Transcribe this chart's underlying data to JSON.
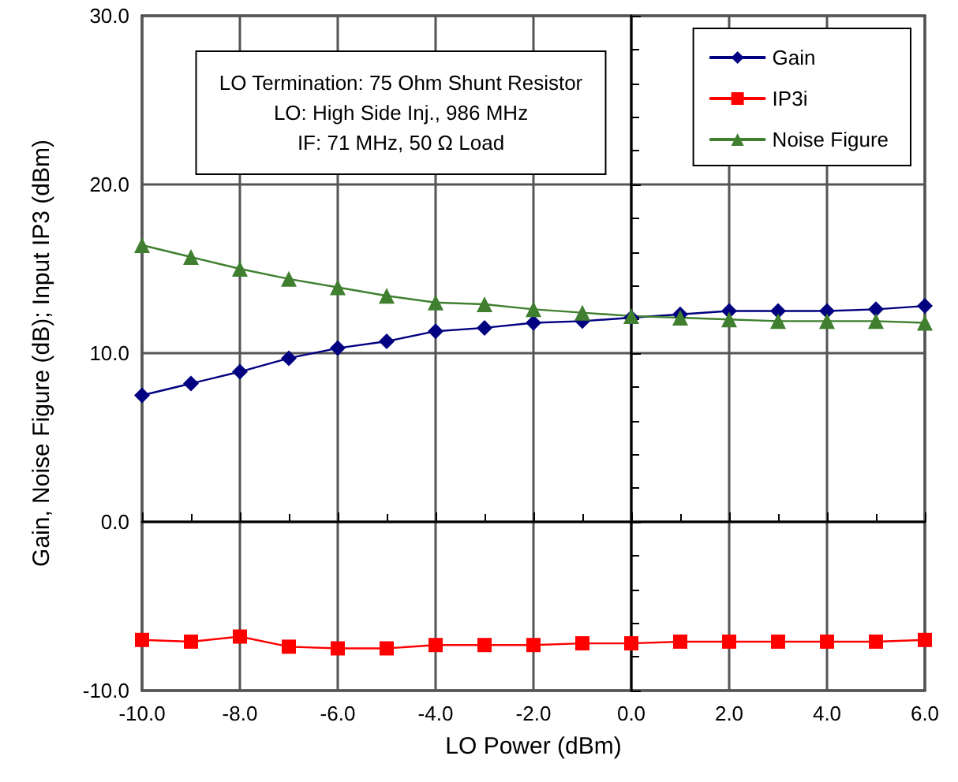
{
  "chart_data": {
    "type": "line",
    "xlabel": "LO Power (dBm)",
    "ylabel": "Gain, Noise Figure (dB); Input IP3 (dBm)",
    "annotations": [
      "LO Termination: 75 Ohm Shunt Resistor",
      "LO: High Side Inj., 986 MHz",
      "IF: 71 MHz, 50 Ω Load"
    ],
    "x": [
      -10,
      -9,
      -8,
      -7,
      -6,
      -5,
      -4,
      -3,
      -2,
      -1,
      0,
      1,
      2,
      3,
      4,
      5,
      6
    ],
    "series": [
      {
        "name": "Gain",
        "color": "#000080",
        "marker": "diamond",
        "values": [
          7.5,
          8.2,
          8.9,
          9.7,
          10.3,
          10.7,
          11.3,
          11.5,
          11.8,
          11.9,
          12.1,
          12.3,
          12.5,
          12.5,
          12.5,
          12.6,
          12.8
        ]
      },
      {
        "name": "IP3i",
        "color": "#ff0000",
        "marker": "square",
        "values": [
          -7.0,
          -7.1,
          -6.8,
          -7.4,
          -7.5,
          -7.5,
          -7.3,
          -7.3,
          -7.3,
          -7.2,
          -7.2,
          -7.1,
          -7.1,
          -7.1,
          -7.1,
          -7.1,
          -7.0
        ]
      },
      {
        "name": "Noise Figure",
        "color": "#3f7f2f",
        "marker": "triangle",
        "values": [
          16.4,
          15.7,
          15.0,
          14.4,
          13.9,
          13.4,
          13.0,
          12.9,
          12.6,
          12.4,
          12.2,
          12.1,
          12.0,
          11.9,
          11.9,
          11.9,
          11.8
        ]
      }
    ],
    "xlim": [
      -10,
      6
    ],
    "xticks": [
      {
        "value": -10,
        "label": "-10.0"
      },
      {
        "value": -9,
        "label": null
      },
      {
        "value": -8,
        "label": "-8.0"
      },
      {
        "value": -7,
        "label": null
      },
      {
        "value": -6,
        "label": "-6.0"
      },
      {
        "value": -5,
        "label": null
      },
      {
        "value": -4,
        "label": "-4.0"
      },
      {
        "value": -3,
        "label": null
      },
      {
        "value": -2,
        "label": "-2.0"
      },
      {
        "value": -1,
        "label": null
      },
      {
        "value": 0,
        "label": "0.0"
      },
      {
        "value": 1,
        "label": null
      },
      {
        "value": 2,
        "label": "2.0"
      },
      {
        "value": 3,
        "label": null
      },
      {
        "value": 4,
        "label": "4.0"
      },
      {
        "value": 5,
        "label": null
      },
      {
        "value": 6,
        "label": "6.0"
      }
    ],
    "ylim": [
      -10,
      30
    ],
    "yticks": [
      {
        "value": -10,
        "label": "-10.0"
      },
      {
        "value": -8,
        "label": null
      },
      {
        "value": -6,
        "label": null
      },
      {
        "value": -4,
        "label": null
      },
      {
        "value": -2,
        "label": null
      },
      {
        "value": 0,
        "label": "0.0"
      },
      {
        "value": 2,
        "label": null
      },
      {
        "value": 4,
        "label": null
      },
      {
        "value": 6,
        "label": null
      },
      {
        "value": 8,
        "label": null
      },
      {
        "value": 10,
        "label": "10.0"
      },
      {
        "value": 12,
        "label": null
      },
      {
        "value": 14,
        "label": null
      },
      {
        "value": 16,
        "label": null
      },
      {
        "value": 18,
        "label": null
      },
      {
        "value": 20,
        "label": "20.0"
      },
      {
        "value": 22,
        "label": null
      },
      {
        "value": 24,
        "label": null
      },
      {
        "value": 26,
        "label": null
      },
      {
        "value": 28,
        "label": null
      },
      {
        "value": 30,
        "label": "30.0"
      }
    ],
    "grid": true,
    "legend": "top right",
    "line_style": "solid"
  }
}
